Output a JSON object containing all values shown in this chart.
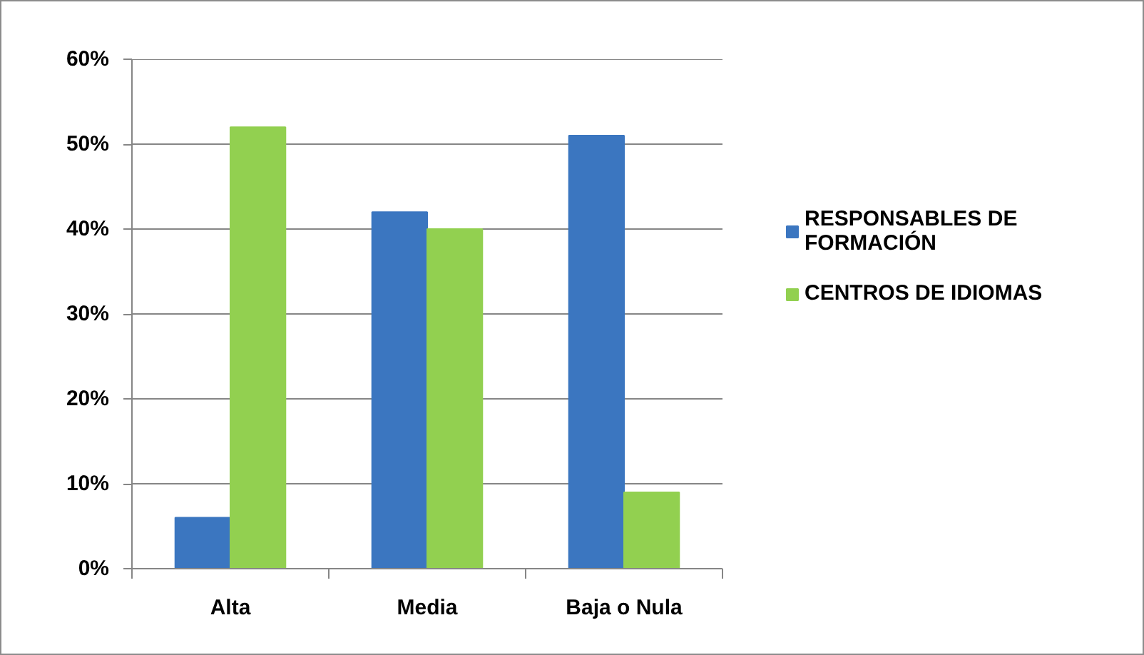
{
  "chart_data": {
    "type": "bar",
    "categories": [
      "Alta",
      "Media",
      "Baja o Nula"
    ],
    "series": [
      {
        "name": "RESPONSABLES DE FORMACIÓN",
        "color": "#3b76c0",
        "values": [
          6,
          42,
          51
        ]
      },
      {
        "name": "CENTROS DE IDIOMAS",
        "color": "#92d050",
        "values": [
          52,
          40,
          9
        ]
      }
    ],
    "ylim": [
      0,
      60
    ],
    "yticks": [
      {
        "value": 0,
        "label": "0%"
      },
      {
        "value": 10,
        "label": "10%"
      },
      {
        "value": 20,
        "label": "20%"
      },
      {
        "value": 30,
        "label": "30%"
      },
      {
        "value": 40,
        "label": "40%"
      },
      {
        "value": 50,
        "label": "50%"
      },
      {
        "value": 60,
        "label": "60%"
      }
    ],
    "grid": "y",
    "legend": "right"
  }
}
